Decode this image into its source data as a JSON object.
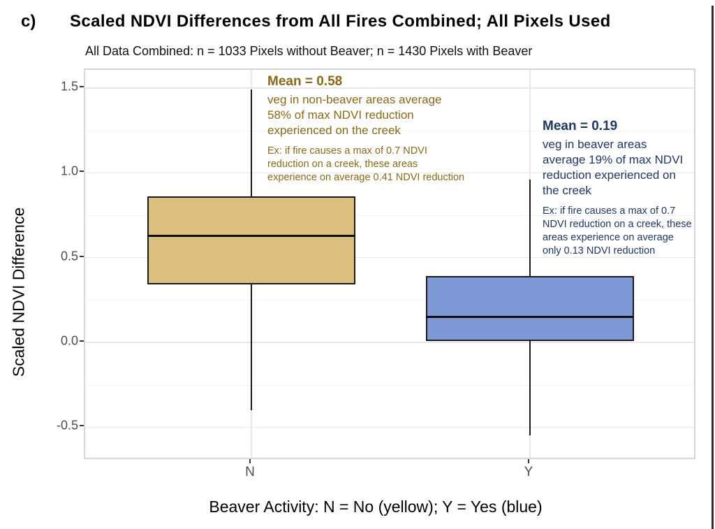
{
  "figure": {
    "tag": "c)",
    "title": "Scaled NDVI Differences from All Fires Combined; All Pixels Used",
    "subtitle": "All Data Combined: n = 1033 Pixels without Beaver; n = 1430 Pixels with Beaver",
    "y_axis_title": "Scaled NDVI Difference",
    "x_axis_title": "Beaver Activity: N = No (yellow); Y = Yes (blue)"
  },
  "annotations": {
    "no_beaver": {
      "heading": "Mean = 0.58",
      "body": "veg in non-beaver areas average\n58% of max NDVI reduction\nexperienced on the creek",
      "example": "Ex: if fire causes a max of 0.7 NDVI\nreduction on a creek, these areas\nexperience on average 0.41 NDVI reduction",
      "color": "#8A6914"
    },
    "beaver": {
      "heading": "Mean = 0.19",
      "body": "veg in beaver areas\naverage 19% of max NDVI\nreduction experienced on\nthe creek",
      "example": "Ex: if fire causes a max of 0.7\nNDVI reduction on a creek, these\nareas experience on average\nonly 0.13 NDVI reduction",
      "color": "#1F3864"
    }
  },
  "chart_data": {
    "type": "boxplot",
    "title": "Scaled NDVI Differences from All Fires Combined; All Pixels Used",
    "subtitle": "All Data Combined: n = 1033 Pixels without Beaver; n = 1430 Pixels with Beaver",
    "xlabel": "Beaver Activity: N = No (yellow); Y = Yes (blue)",
    "ylabel": "Scaled NDVI Difference",
    "categories": [
      "N",
      "Y"
    ],
    "series": [
      {
        "name": "N (no beaver)",
        "n_pixels": 1033,
        "mean": 0.58,
        "whisker_low": -0.4,
        "q1": 0.34,
        "median": 0.63,
        "q3": 0.86,
        "whisker_high": 1.49,
        "fill": "#DABF7E",
        "stroke": "#1a1a1a"
      },
      {
        "name": "Y (beaver)",
        "n_pixels": 1430,
        "mean": 0.19,
        "whisker_low": -0.55,
        "q1": 0.01,
        "median": 0.15,
        "q3": 0.39,
        "whisker_high": 0.96,
        "fill": "#7F99D6",
        "stroke": "#1a1a1a"
      }
    ],
    "ylim": [
      -0.7,
      1.61
    ],
    "yticks": [
      {
        "label": "1.5",
        "value": 1.5
      },
      {
        "label": "1.0",
        "value": 1.0
      },
      {
        "label": "0.5",
        "value": 0.5
      },
      {
        "label": "0.0",
        "value": 0.0
      },
      {
        "label": "-0.5",
        "value": -0.5
      }
    ],
    "grid": true,
    "legend_position": "none",
    "grid_major_color": "#e8e8e8",
    "grid_minor_color": "#f3f3f3"
  }
}
